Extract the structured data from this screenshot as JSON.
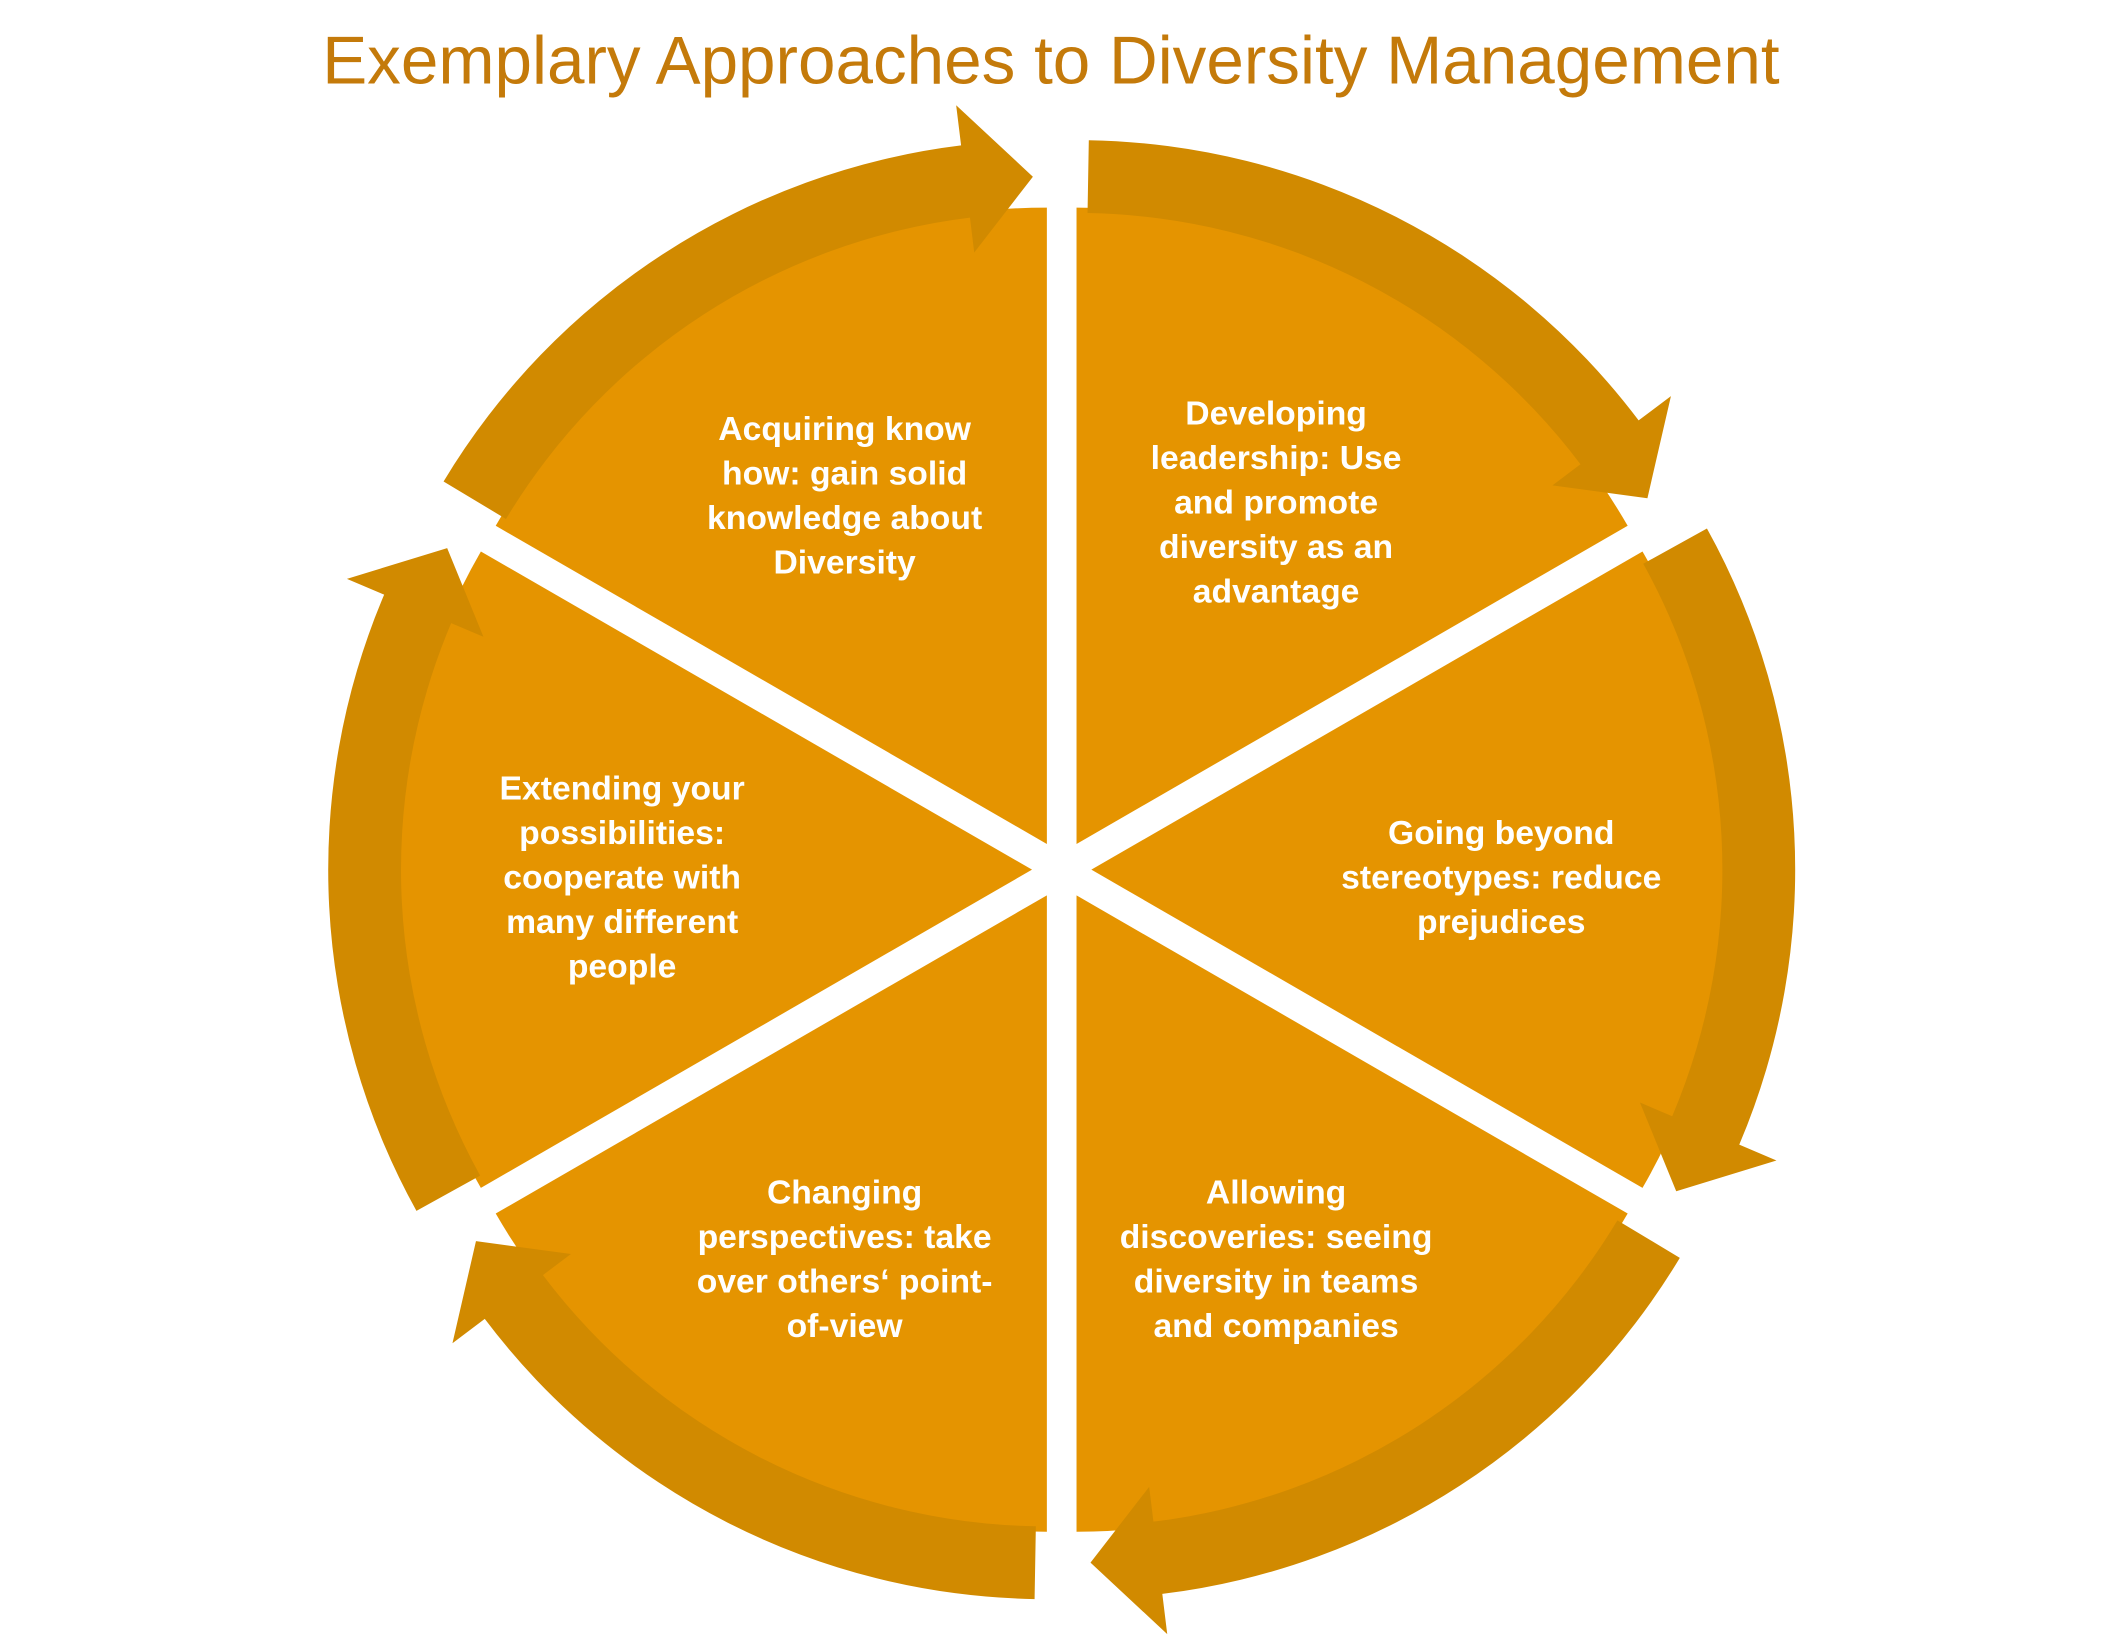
{
  "title": "Exemplary Approaches to Diversity Management",
  "colors": {
    "title": "#C47A0A",
    "segment_fill": "#E59400",
    "arrow_fill": "#D18A00",
    "text": "#FFFFFF"
  },
  "cycle_direction": "clockwise",
  "segments": [
    {
      "lines": [
        "Developing",
        "leadership: Use",
        "and promote",
        "diversity as an",
        "advantage"
      ]
    },
    {
      "lines": [
        "Going beyond",
        "stereotypes: reduce",
        "prejudices"
      ]
    },
    {
      "lines": [
        "Allowing",
        "discoveries: seeing",
        "diversity in teams",
        "and companies"
      ]
    },
    {
      "lines": [
        "Changing",
        "perspectives: take",
        "over others‘ point-",
        "of-view"
      ]
    },
    {
      "lines": [
        "Extending your",
        "possibilities:",
        "cooperate with",
        "many different",
        "people"
      ]
    },
    {
      "lines": [
        "Acquiring know",
        "how: gain solid",
        "knowledge about",
        "Diversity"
      ]
    }
  ]
}
